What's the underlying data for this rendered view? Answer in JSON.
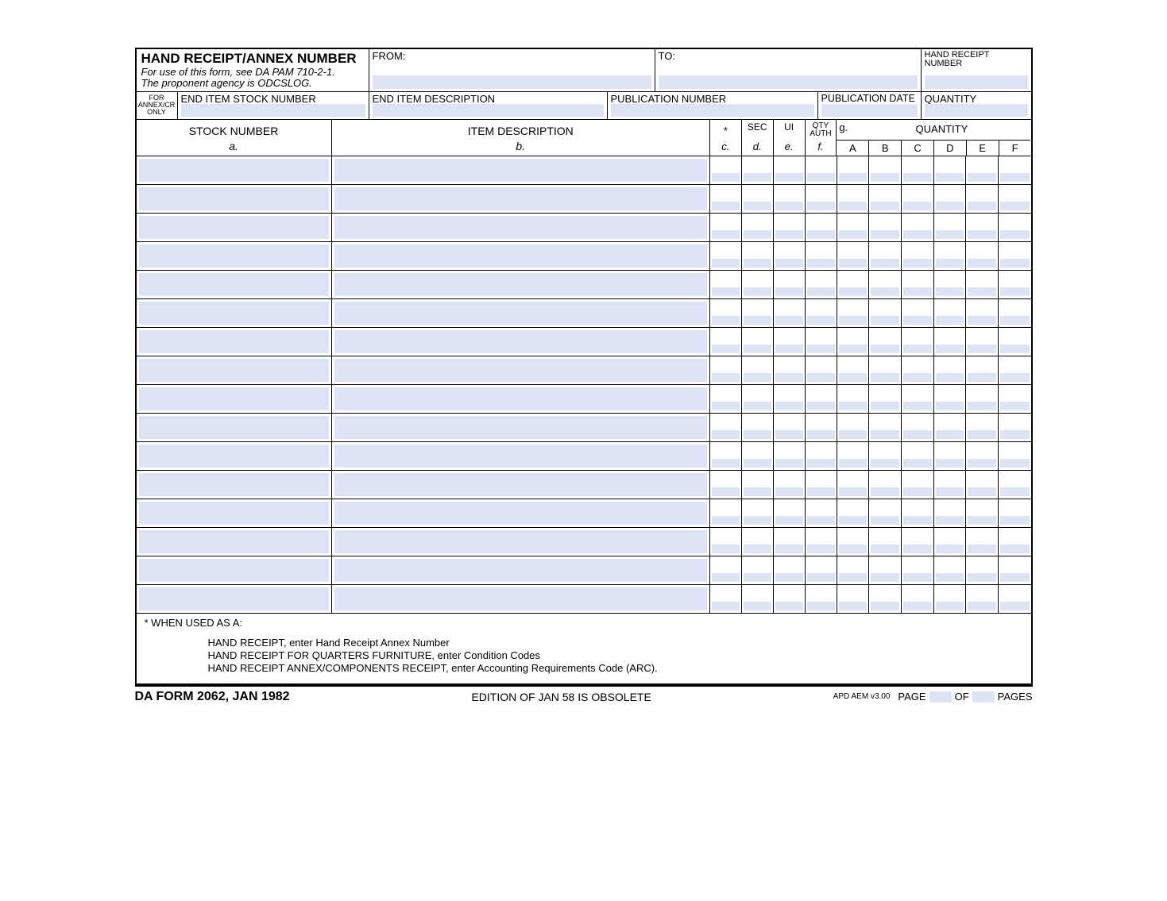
{
  "header": {
    "title": "HAND RECEIPT/ANNEX NUMBER",
    "subtitle1": "For use of this form, see DA PAM 710-2-1.",
    "subtitle2": "The proponent agency is ODCSLOG.",
    "from_label": "FROM:",
    "to_label": "TO:",
    "hr_number_label": "HAND RECEIPT NUMBER"
  },
  "row2": {
    "annex_label": "FOR\nANNEX/CR\nONLY",
    "end_item_stock": "END ITEM STOCK NUMBER",
    "end_item_desc": "END ITEM DESCRIPTION",
    "pub_number": "PUBLICATION NUMBER",
    "pub_date": "PUBLICATION DATE",
    "quantity": "QUANTITY"
  },
  "cols": {
    "stock_number": "STOCK NUMBER",
    "stock_letter": "a.",
    "item_desc": "ITEM DESCRIPTION",
    "item_letter": "b.",
    "star": "*",
    "star_letter": "c.",
    "sec": "SEC",
    "sec_letter": "d.",
    "ui": "UI",
    "ui_letter": "e.",
    "qty_auth": "QTY\nAUTH",
    "qty_auth_letter": "f.",
    "g": "g.",
    "quantity": "QUANTITY",
    "letters": [
      "A",
      "B",
      "C",
      "D",
      "E",
      "F"
    ]
  },
  "data_row_count": 16,
  "footnote": {
    "lead": "*  WHEN USED AS A:",
    "lines": [
      "HAND RECEIPT, enter Hand Receipt Annex Number",
      "HAND RECEIPT FOR QUARTERS FURNITURE, enter Condition Codes",
      "HAND RECEIPT ANNEX/COMPONENTS RECEIPT, enter Accounting Requirements Code (ARC)."
    ]
  },
  "bottom": {
    "form_id": "DA FORM 2062, JAN 1982",
    "obsolete": "EDITION OF JAN 58 IS OBSOLETE",
    "apd": "APD AEM v3.00",
    "page": "PAGE",
    "of": "OF",
    "pages": "PAGES"
  },
  "colors": {
    "fill": "#dbe3f4"
  }
}
